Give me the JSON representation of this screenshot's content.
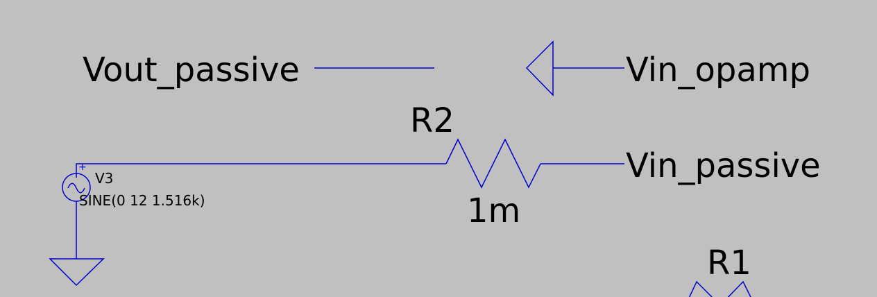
{
  "labels": {
    "vout_passive": "Vout_passive",
    "vin_opamp": "Vin_opamp",
    "vin_passive": "Vin_passive"
  },
  "components": {
    "r2": {
      "name": "R2",
      "value": "1m"
    },
    "r1": {
      "name": "R1"
    },
    "v3": {
      "name": "V3",
      "value": "SINE(0 12 1.516k)",
      "polarity": "+"
    }
  },
  "colors": {
    "wire": "#0000cc",
    "text": "#000000",
    "background": "#c0c0c0"
  }
}
